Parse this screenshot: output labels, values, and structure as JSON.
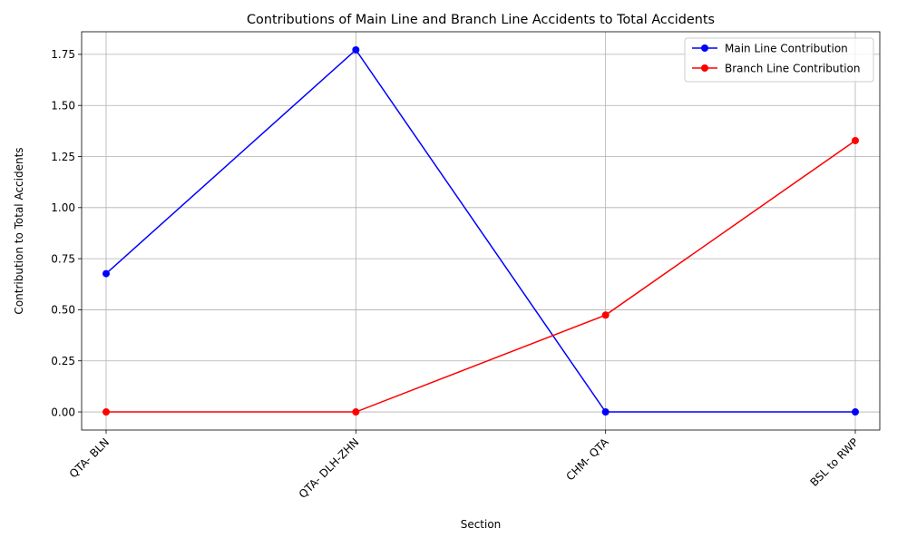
{
  "chart_data": {
    "type": "line",
    "title": "Contributions of Main Line and Branch Line Accidents to Total Accidents",
    "xlabel": "Section",
    "ylabel": "Contribution to Total Accidents",
    "categories": [
      "QTA- BLN",
      "QTA- DLH-ZHN",
      "CHM- QTA",
      "BSL to RWP"
    ],
    "series": [
      {
        "name": "Main Line Contribution",
        "color": "#0000ff",
        "values": [
          0.677,
          1.772,
          0.0,
          0.0
        ]
      },
      {
        "name": "Branch Line Contribution",
        "color": "#ff0000",
        "values": [
          0.0,
          0.0,
          0.474,
          1.328
        ]
      }
    ],
    "yticks": [
      "0.00",
      "0.25",
      "0.50",
      "0.75",
      "1.00",
      "1.25",
      "1.50",
      "1.75"
    ],
    "ylim": [
      -0.0886,
      1.8606
    ],
    "grid": true,
    "legend": "top-right",
    "xtick_rotation": 45
  }
}
